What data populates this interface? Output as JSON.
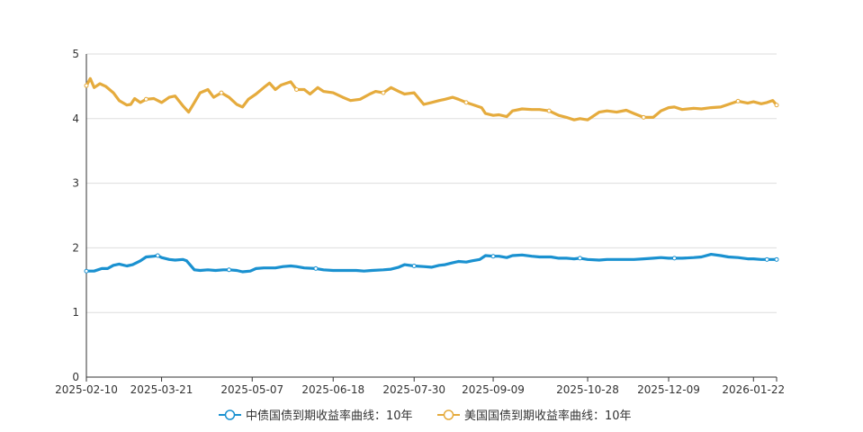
{
  "chart_data": {
    "type": "line",
    "ylim": [
      0,
      5
    ],
    "yticks": [
      "0",
      "1",
      "2",
      "3",
      "4",
      "5"
    ],
    "xlim": [
      "2025-02-10",
      "2026-02-03"
    ],
    "xticks": [
      "2025-02-10",
      "2025-03-21",
      "2025-05-07",
      "2025-06-18",
      "2025-07-30",
      "2025-09-09",
      "2025-10-28",
      "2025-12-09",
      "2026-01-22"
    ],
    "grid": true,
    "legend_position": "bottom-center",
    "series": [
      {
        "name": "中债国债到期收益率曲线：10年",
        "color": "#1a91d0",
        "points": [
          [
            "2025-02-10",
            1.64
          ],
          [
            "2025-02-14",
            1.64
          ],
          [
            "2025-02-18",
            1.68
          ],
          [
            "2025-02-21",
            1.68
          ],
          [
            "2025-02-24",
            1.73
          ],
          [
            "2025-02-27",
            1.75
          ],
          [
            "2025-03-03",
            1.72
          ],
          [
            "2025-03-06",
            1.74
          ],
          [
            "2025-03-10",
            1.8
          ],
          [
            "2025-03-13",
            1.86
          ],
          [
            "2025-03-17",
            1.87
          ],
          [
            "2025-03-19",
            1.88
          ],
          [
            "2025-03-21",
            1.85
          ],
          [
            "2025-03-25",
            1.82
          ],
          [
            "2025-03-28",
            1.81
          ],
          [
            "2025-04-01",
            1.82
          ],
          [
            "2025-04-03",
            1.8
          ],
          [
            "2025-04-07",
            1.66
          ],
          [
            "2025-04-10",
            1.65
          ],
          [
            "2025-04-14",
            1.66
          ],
          [
            "2025-04-18",
            1.65
          ],
          [
            "2025-04-22",
            1.66
          ],
          [
            "2025-04-25",
            1.66
          ],
          [
            "2025-04-29",
            1.65
          ],
          [
            "2025-05-02",
            1.63
          ],
          [
            "2025-05-06",
            1.64
          ],
          [
            "2025-05-09",
            1.68
          ],
          [
            "2025-05-13",
            1.69
          ],
          [
            "2025-05-19",
            1.69
          ],
          [
            "2025-05-23",
            1.71
          ],
          [
            "2025-05-27",
            1.72
          ],
          [
            "2025-05-30",
            1.71
          ],
          [
            "2025-06-03",
            1.69
          ],
          [
            "2025-06-09",
            1.68
          ],
          [
            "2025-06-13",
            1.66
          ],
          [
            "2025-06-18",
            1.65
          ],
          [
            "2025-06-24",
            1.65
          ],
          [
            "2025-06-30",
            1.65
          ],
          [
            "2025-07-04",
            1.64
          ],
          [
            "2025-07-08",
            1.65
          ],
          [
            "2025-07-14",
            1.66
          ],
          [
            "2025-07-18",
            1.67
          ],
          [
            "2025-07-22",
            1.7
          ],
          [
            "2025-07-25",
            1.74
          ],
          [
            "2025-07-30",
            1.72
          ],
          [
            "2025-08-04",
            1.71
          ],
          [
            "2025-08-08",
            1.7
          ],
          [
            "2025-08-12",
            1.73
          ],
          [
            "2025-08-15",
            1.74
          ],
          [
            "2025-08-19",
            1.77
          ],
          [
            "2025-08-22",
            1.79
          ],
          [
            "2025-08-26",
            1.78
          ],
          [
            "2025-08-29",
            1.8
          ],
          [
            "2025-09-02",
            1.82
          ],
          [
            "2025-09-05",
            1.88
          ],
          [
            "2025-09-09",
            1.87
          ],
          [
            "2025-09-12",
            1.87
          ],
          [
            "2025-09-16",
            1.85
          ],
          [
            "2025-09-19",
            1.88
          ],
          [
            "2025-09-24",
            1.89
          ],
          [
            "2025-09-29",
            1.87
          ],
          [
            "2025-10-03",
            1.86
          ],
          [
            "2025-10-09",
            1.86
          ],
          [
            "2025-10-13",
            1.84
          ],
          [
            "2025-10-17",
            1.84
          ],
          [
            "2025-10-21",
            1.83
          ],
          [
            "2025-10-24",
            1.84
          ],
          [
            "2025-10-28",
            1.82
          ],
          [
            "2025-11-03",
            1.81
          ],
          [
            "2025-11-07",
            1.82
          ],
          [
            "2025-11-12",
            1.82
          ],
          [
            "2025-11-17",
            1.82
          ],
          [
            "2025-11-21",
            1.82
          ],
          [
            "2025-11-26",
            1.83
          ],
          [
            "2025-12-01",
            1.84
          ],
          [
            "2025-12-05",
            1.85
          ],
          [
            "2025-12-09",
            1.84
          ],
          [
            "2025-12-12",
            1.84
          ],
          [
            "2025-12-16",
            1.84
          ],
          [
            "2025-12-22",
            1.85
          ],
          [
            "2025-12-26",
            1.86
          ],
          [
            "2025-12-31",
            1.9
          ],
          [
            "2026-01-05",
            1.88
          ],
          [
            "2026-01-09",
            1.86
          ],
          [
            "2026-01-14",
            1.85
          ],
          [
            "2026-01-19",
            1.83
          ],
          [
            "2026-01-22",
            1.83
          ],
          [
            "2026-01-26",
            1.82
          ],
          [
            "2026-01-29",
            1.82
          ],
          [
            "2026-02-03",
            1.82
          ]
        ]
      },
      {
        "name": "美国国债到期收益率曲线：10年",
        "color": "#e5ab3d",
        "points": [
          [
            "2025-02-10",
            4.51
          ],
          [
            "2025-02-12",
            4.62
          ],
          [
            "2025-02-14",
            4.48
          ],
          [
            "2025-02-17",
            4.54
          ],
          [
            "2025-02-20",
            4.5
          ],
          [
            "2025-02-24",
            4.4
          ],
          [
            "2025-02-27",
            4.28
          ],
          [
            "2025-03-03",
            4.21
          ],
          [
            "2025-03-05",
            4.22
          ],
          [
            "2025-03-07",
            4.31
          ],
          [
            "2025-03-10",
            4.25
          ],
          [
            "2025-03-13",
            4.3
          ],
          [
            "2025-03-17",
            4.31
          ],
          [
            "2025-03-21",
            4.25
          ],
          [
            "2025-03-25",
            4.33
          ],
          [
            "2025-03-28",
            4.35
          ],
          [
            "2025-04-01",
            4.2
          ],
          [
            "2025-04-04",
            4.1
          ],
          [
            "2025-04-07",
            4.25
          ],
          [
            "2025-04-10",
            4.4
          ],
          [
            "2025-04-14",
            4.45
          ],
          [
            "2025-04-17",
            4.33
          ],
          [
            "2025-04-21",
            4.4
          ],
          [
            "2025-04-25",
            4.33
          ],
          [
            "2025-04-29",
            4.22
          ],
          [
            "2025-05-02",
            4.18
          ],
          [
            "2025-05-05",
            4.3
          ],
          [
            "2025-05-09",
            4.38
          ],
          [
            "2025-05-13",
            4.48
          ],
          [
            "2025-05-16",
            4.55
          ],
          [
            "2025-05-19",
            4.45
          ],
          [
            "2025-05-22",
            4.52
          ],
          [
            "2025-05-27",
            4.57
          ],
          [
            "2025-05-30",
            4.45
          ],
          [
            "2025-06-03",
            4.45
          ],
          [
            "2025-06-06",
            4.38
          ],
          [
            "2025-06-10",
            4.48
          ],
          [
            "2025-06-13",
            4.42
          ],
          [
            "2025-06-18",
            4.4
          ],
          [
            "2025-06-23",
            4.33
          ],
          [
            "2025-06-27",
            4.28
          ],
          [
            "2025-07-02",
            4.3
          ],
          [
            "2025-07-07",
            4.38
          ],
          [
            "2025-07-10",
            4.42
          ],
          [
            "2025-07-14",
            4.4
          ],
          [
            "2025-07-18",
            4.48
          ],
          [
            "2025-07-22",
            4.42
          ],
          [
            "2025-07-25",
            4.38
          ],
          [
            "2025-07-30",
            4.4
          ],
          [
            "2025-08-04",
            4.22
          ],
          [
            "2025-08-08",
            4.25
          ],
          [
            "2025-08-12",
            4.28
          ],
          [
            "2025-08-15",
            4.3
          ],
          [
            "2025-08-19",
            4.33
          ],
          [
            "2025-08-22",
            4.3
          ],
          [
            "2025-08-26",
            4.25
          ],
          [
            "2025-08-29",
            4.22
          ],
          [
            "2025-09-03",
            4.17
          ],
          [
            "2025-09-05",
            4.08
          ],
          [
            "2025-09-09",
            4.05
          ],
          [
            "2025-09-12",
            4.06
          ],
          [
            "2025-09-16",
            4.03
          ],
          [
            "2025-09-19",
            4.12
          ],
          [
            "2025-09-24",
            4.15
          ],
          [
            "2025-09-29",
            4.14
          ],
          [
            "2025-10-03",
            4.14
          ],
          [
            "2025-10-08",
            4.12
          ],
          [
            "2025-10-13",
            4.05
          ],
          [
            "2025-10-17",
            4.02
          ],
          [
            "2025-10-21",
            3.98
          ],
          [
            "2025-10-24",
            4.0
          ],
          [
            "2025-10-28",
            3.98
          ],
          [
            "2025-11-03",
            4.1
          ],
          [
            "2025-11-07",
            4.12
          ],
          [
            "2025-11-12",
            4.1
          ],
          [
            "2025-11-17",
            4.13
          ],
          [
            "2025-11-21",
            4.08
          ],
          [
            "2025-11-26",
            4.02
          ],
          [
            "2025-12-01",
            4.02
          ],
          [
            "2025-12-05",
            4.12
          ],
          [
            "2025-12-09",
            4.17
          ],
          [
            "2025-12-12",
            4.18
          ],
          [
            "2025-12-16",
            4.14
          ],
          [
            "2025-12-22",
            4.16
          ],
          [
            "2025-12-26",
            4.15
          ],
          [
            "2025-12-31",
            4.17
          ],
          [
            "2026-01-05",
            4.18
          ],
          [
            "2026-01-09",
            4.22
          ],
          [
            "2026-01-14",
            4.27
          ],
          [
            "2026-01-19",
            4.24
          ],
          [
            "2026-01-22",
            4.26
          ],
          [
            "2026-01-26",
            4.23
          ],
          [
            "2026-01-29",
            4.25
          ],
          [
            "2026-02-01",
            4.28
          ],
          [
            "2026-02-03",
            4.21
          ]
        ]
      }
    ]
  }
}
